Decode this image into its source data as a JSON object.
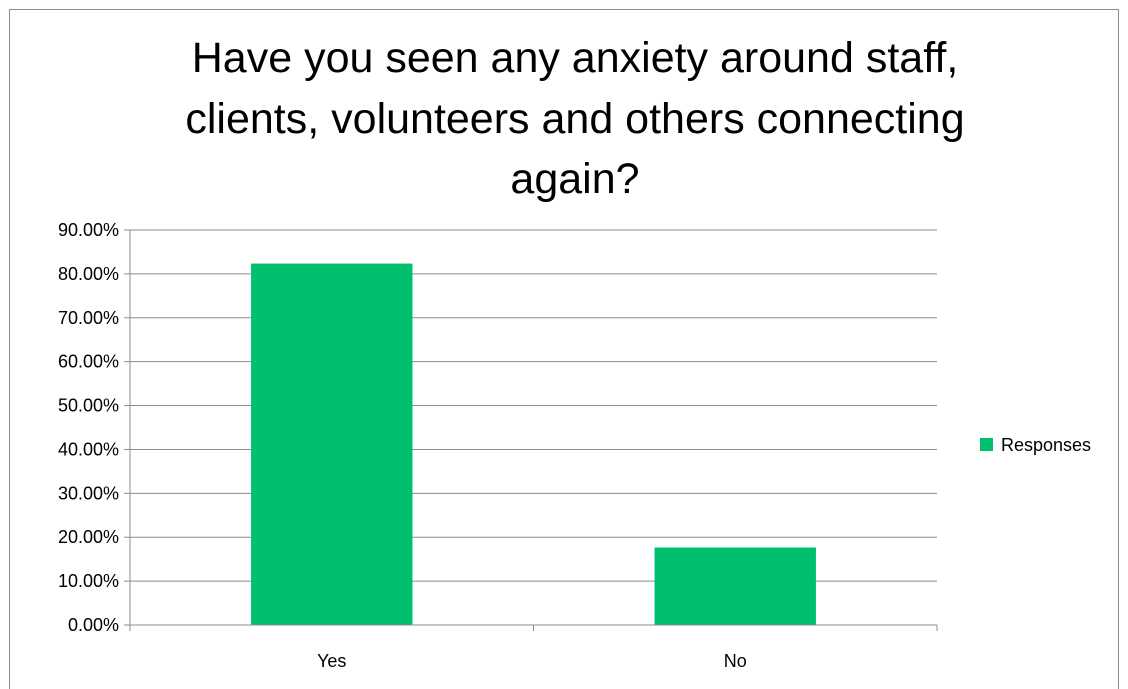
{
  "chart_data": {
    "type": "bar",
    "title_lines": [
      "Have you seen any anxiety around staff,",
      "clients, volunteers and others connecting",
      "again?"
    ],
    "categories": [
      "Yes",
      "No"
    ],
    "series": [
      {
        "name": "Responses",
        "values": [
          82.35,
          17.65
        ],
        "color": "#00c070"
      }
    ],
    "ylim": [
      0,
      90
    ],
    "ytick_step": 10,
    "ytick_labels": [
      "0.00%",
      "10.00%",
      "20.00%",
      "30.00%",
      "40.00%",
      "50.00%",
      "60.00%",
      "70.00%",
      "80.00%",
      "90.00%"
    ],
    "grid": true,
    "legend_position": "right",
    "xlabel": "",
    "ylabel": ""
  }
}
